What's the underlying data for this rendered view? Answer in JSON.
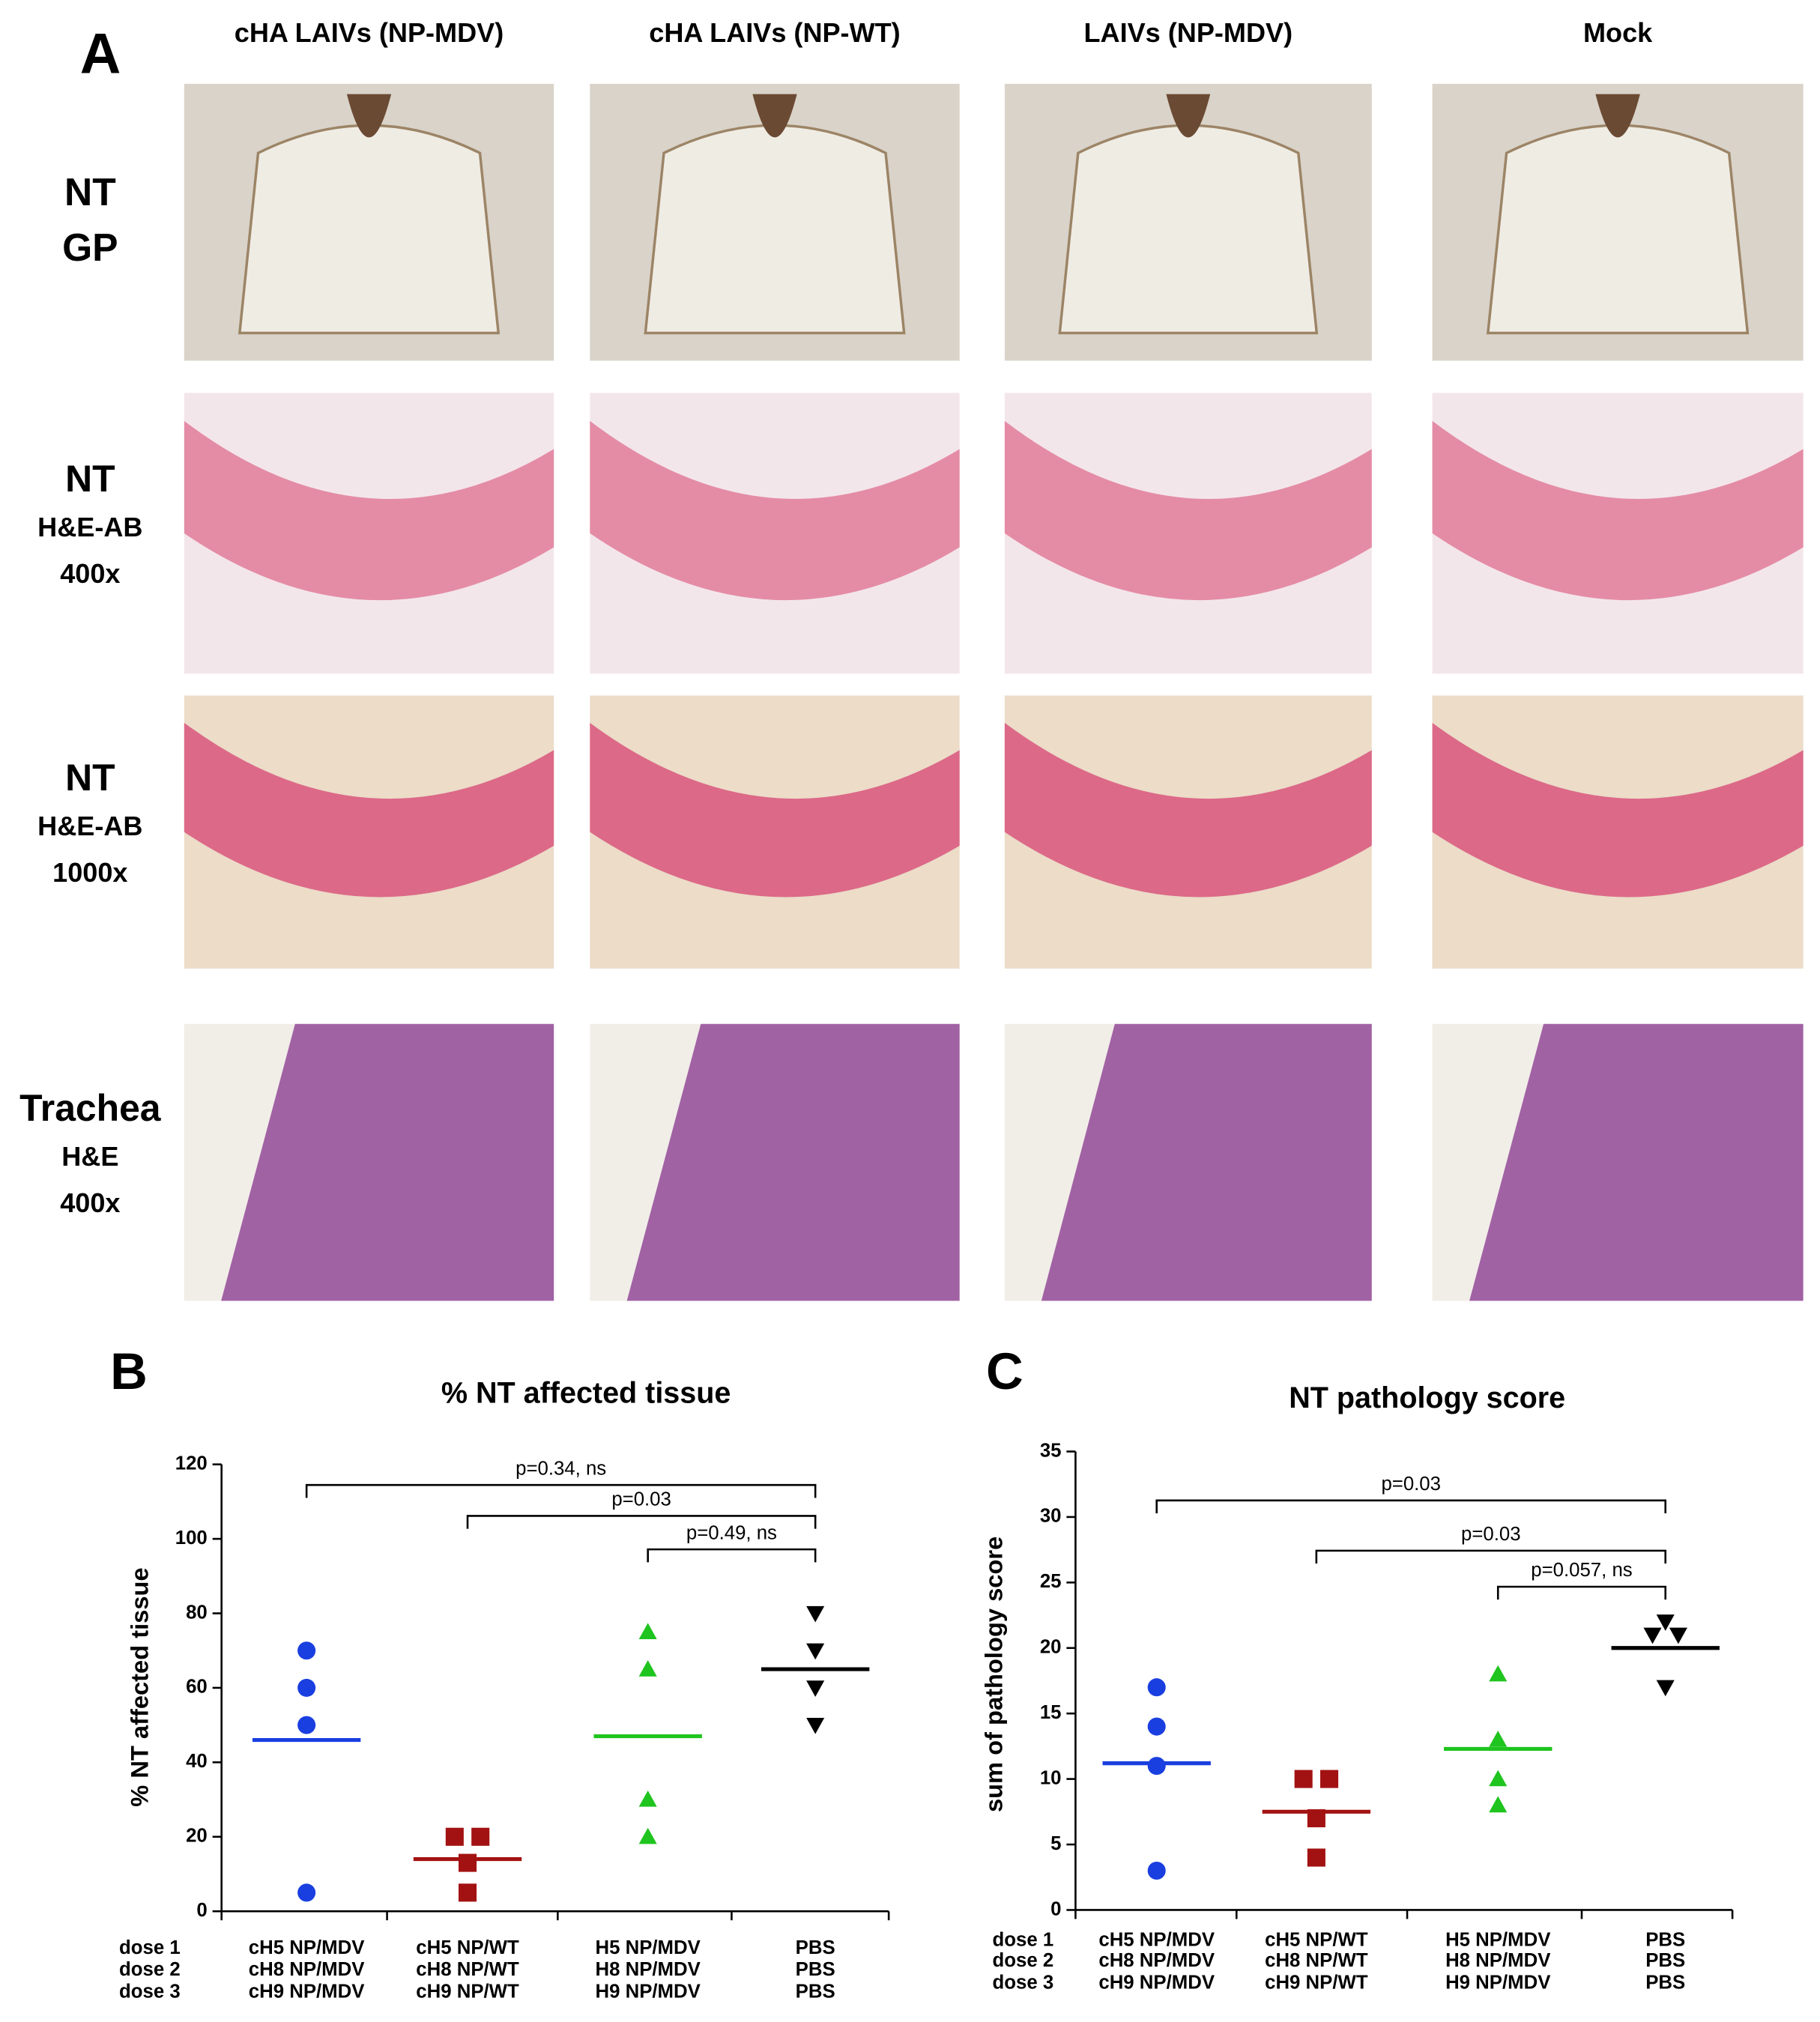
{
  "panel_a": {
    "label": "A",
    "columns": [
      "cHA LAIVs (NP-MDV)",
      "cHA LAIVs (NP-WT)",
      "LAIVs (NP-MDV)",
      "Mock"
    ],
    "rows": [
      {
        "lines": [
          "NT",
          "GP"
        ]
      },
      {
        "lines": [
          "NT",
          "H&E-AB",
          "400x"
        ]
      },
      {
        "lines": [
          "NT",
          "H&E-AB",
          "1000x"
        ]
      },
      {
        "lines": [
          "Trachea",
          "H&E",
          "400x"
        ]
      }
    ]
  },
  "chart_data": [
    {
      "type": "scatter",
      "panel": "B",
      "title": "% NT affected tissue",
      "y_label": "% NT affected tissue",
      "ylim": [
        0,
        120
      ],
      "yticks": [
        0,
        20,
        40,
        60,
        80,
        100,
        120
      ],
      "dose_labels": [
        "dose 1",
        "dose 2",
        "dose 3"
      ],
      "groups": [
        {
          "doses": [
            "cH5 NP/MDV",
            "cH8 NP/MDV",
            "cH9 NP/MDV"
          ],
          "color": "#1a3fe0",
          "marker": "circle",
          "points": [
            70,
            60,
            50,
            5
          ],
          "mean": 46
        },
        {
          "doses": [
            "cH5 NP/WT",
            "cH8 NP/WT",
            "cH9 NP/WT"
          ],
          "color": "#a31212",
          "marker": "square",
          "points": [
            20,
            20,
            13,
            5
          ],
          "mean": 14
        },
        {
          "doses": [
            "H5 NP/MDV",
            "H8 NP/MDV",
            "H9 NP/MDV"
          ],
          "color": "#1fc41f",
          "marker": "triangle-up",
          "points": [
            75,
            65,
            30,
            20
          ],
          "mean": 47
        },
        {
          "doses": [
            "PBS",
            "PBS",
            "PBS"
          ],
          "color": "#000000",
          "marker": "triangle-down",
          "points": [
            80,
            70,
            60,
            50
          ],
          "mean": 65
        }
      ],
      "annotations": [
        {
          "text": "p=0.34, ns",
          "from": 0,
          "to": 3
        },
        {
          "text": "p=0.03",
          "from": 1,
          "to": 3
        },
        {
          "text": "p=0.49, ns",
          "from": 2,
          "to": 3
        }
      ]
    },
    {
      "type": "scatter",
      "panel": "C",
      "title": "NT pathology score",
      "y_label": "sum of pathology score",
      "ylim": [
        0,
        35
      ],
      "yticks": [
        0,
        5,
        10,
        15,
        20,
        25,
        30,
        35
      ],
      "dose_labels": [
        "dose 1",
        "dose 2",
        "dose 3"
      ],
      "groups": [
        {
          "doses": [
            "cH5 NP/MDV",
            "cH8 NP/MDV",
            "cH9 NP/MDV"
          ],
          "color": "#1a3fe0",
          "marker": "circle",
          "points": [
            17,
            14,
            11,
            3
          ],
          "mean": 11.2
        },
        {
          "doses": [
            "cH5 NP/WT",
            "cH8 NP/WT",
            "cH9 NP/WT"
          ],
          "color": "#a31212",
          "marker": "square",
          "points": [
            10,
            10,
            7,
            4
          ],
          "mean": 7.5
        },
        {
          "doses": [
            "H5 NP/MDV",
            "H8 NP/MDV",
            "H9 NP/MDV"
          ],
          "color": "#1fc41f",
          "marker": "triangle-up",
          "points": [
            18,
            13,
            10,
            8
          ],
          "mean": 12.3
        },
        {
          "doses": [
            "PBS",
            "PBS",
            "PBS"
          ],
          "color": "#000000",
          "marker": "triangle-down",
          "points": [
            22,
            21,
            21,
            17
          ],
          "mean": 20
        }
      ],
      "annotations": [
        {
          "text": "p=0.03",
          "from": 0,
          "to": 3
        },
        {
          "text": "p=0.03",
          "from": 1,
          "to": 3
        },
        {
          "text": "p=0.057, ns",
          "from": 2,
          "to": 3
        }
      ]
    }
  ]
}
